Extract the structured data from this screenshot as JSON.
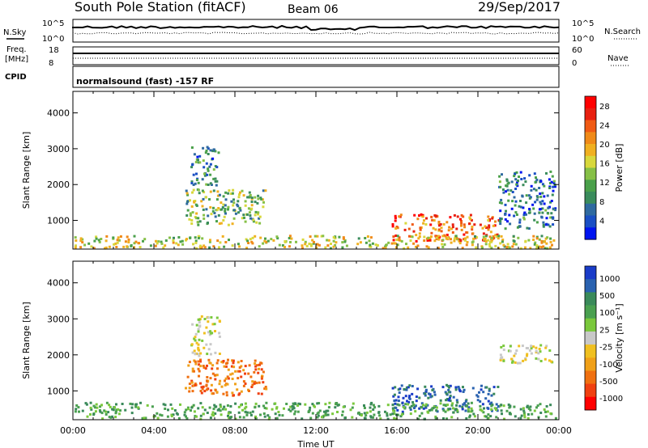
{
  "header": {
    "station": "South Pole Station (fitACF)",
    "beam": "Beam 06",
    "date": "29/Sep/2017"
  },
  "aux_panel": {
    "nsky_label": "N.Sky",
    "nsky_top": "10^5",
    "nsky_bottom": "10^0",
    "nsearch_label": "N.Search",
    "nsearch_top": "10^5",
    "nsearch_bottom": "10^0",
    "freq_label": "Freq.",
    "freq_unit": "[MHz]",
    "freq_top": "18",
    "freq_bottom": "8",
    "nave_label": "Nave",
    "nave_top": "60",
    "nave_bottom": "0",
    "cpid_label": "CPID",
    "cpid_text": "normalsound (fast) -157 RF"
  },
  "chart_data": [
    {
      "type": "heatmap",
      "panel": "power",
      "ylabel": "Slant Range [km]",
      "xlabel": "",
      "ylim": [
        200,
        4600
      ],
      "xlim": [
        0,
        24
      ],
      "yticks": [
        "1000",
        "2000",
        "3000",
        "4000"
      ],
      "colorbar": {
        "label": "Power [dB]",
        "ticks": [
          "4",
          "8",
          "12",
          "16",
          "20",
          "24",
          "28"
        ],
        "colors": [
          "#0014f0",
          "#1a4fc4",
          "#2f6aa0",
          "#3a8c5c",
          "#4aa04a",
          "#86c046",
          "#d8d83c",
          "#f0b020",
          "#f08a18",
          "#f05a14",
          "#e82010",
          "#ff0000"
        ]
      },
      "regions": [
        {
          "x": [
            5.5,
            9.5
          ],
          "y": [
            900,
            1900
          ],
          "value": 12
        },
        {
          "x": [
            5.8,
            7.2
          ],
          "y": [
            2000,
            3100
          ],
          "value": 8
        },
        {
          "x": [
            15.7,
            21.0
          ],
          "y": [
            450,
            1200
          ],
          "value": 24
        },
        {
          "x": [
            21.0,
            23.8
          ],
          "y": [
            800,
            2400
          ],
          "value": 6
        },
        {
          "x": [
            0.0,
            23.9
          ],
          "y": [
            250,
            600
          ],
          "value": 16
        }
      ]
    },
    {
      "type": "heatmap",
      "panel": "velocity",
      "ylabel": "Slant Range [km]",
      "xlabel": "Time UT",
      "ylim": [
        200,
        4600
      ],
      "xlim": [
        0,
        24
      ],
      "yticks": [
        "1000",
        "2000",
        "3000",
        "4000"
      ],
      "xticks": [
        "00:00",
        "04:00",
        "08:00",
        "12:00",
        "16:00",
        "20:00",
        "00:00"
      ],
      "colorbar": {
        "label": "Velocity [m s⁻¹]",
        "ticks": [
          "1000",
          "500",
          "100",
          "25",
          "-25",
          "-100",
          "-500",
          "-1000"
        ],
        "colors": [
          "#1a3cc8",
          "#2a62b0",
          "#3a8a5a",
          "#4aa050",
          "#7ac83c",
          "#c8c8c8",
          "#f0c020",
          "#f0a018",
          "#f07010",
          "#f04010",
          "#ff0000"
        ]
      },
      "regions": [
        {
          "x": [
            5.5,
            9.5
          ],
          "y": [
            900,
            1900
          ],
          "value": -300
        },
        {
          "x": [
            5.8,
            7.2
          ],
          "y": [
            2000,
            3100
          ],
          "value": 0
        },
        {
          "x": [
            15.7,
            21.0
          ],
          "y": [
            450,
            1200
          ],
          "value": 700
        },
        {
          "x": [
            21.0,
            23.8
          ],
          "y": [
            1800,
            2300
          ],
          "value": 10
        },
        {
          "x": [
            0.0,
            23.9
          ],
          "y": [
            250,
            700
          ],
          "value": 80
        }
      ]
    }
  ]
}
